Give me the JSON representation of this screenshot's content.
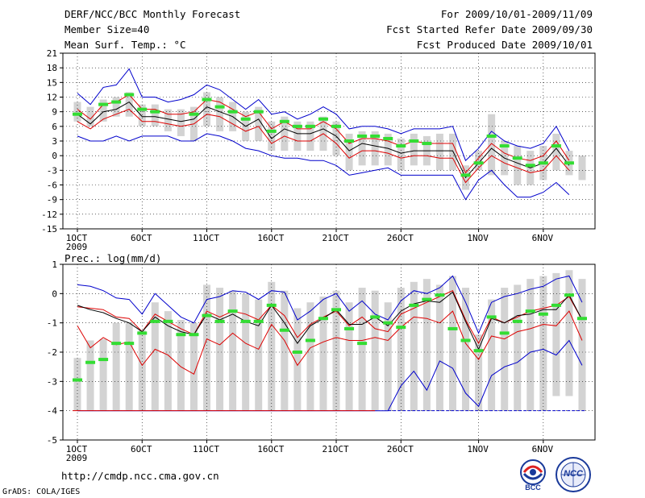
{
  "header": {
    "left": [
      "DERF/NCC/BCC Monthly Forecast",
      "Member Size=40",
      "Mean Surf. Temp.: °C"
    ],
    "right": [
      "For 2009/10/01-2009/11/09",
      "Fcst Started Refer Date 2009/09/30",
      "Fcst Produced Date 2009/10/01"
    ]
  },
  "footer": {
    "url": "http://cmdp.ncc.cma.gov.cn",
    "grads": "GrADS: COLA/IGES"
  },
  "logos": {
    "bcc": "BCC",
    "ncc": "NCC"
  },
  "colors": {
    "ensemble_max": "#0000cc",
    "ensemble_min": "#0000cc",
    "mean": "#000000",
    "spread": "#dd0000",
    "bar": "#d3d3d3",
    "mode": "#33dd33"
  },
  "chart_data": [
    {
      "type": "box-line",
      "title": "Mean Surf. Temp.: °C",
      "ylabel": "°C",
      "ylim": [
        -15,
        21
      ],
      "yticks": [
        -15,
        -12,
        -9,
        -6,
        -3,
        0,
        3,
        6,
        9,
        12,
        15,
        18,
        21
      ],
      "x_tick_labels": [
        {
          "day": 1,
          "label": "1OCT",
          "sub": "2009"
        },
        {
          "day": 6,
          "label": "6OCT"
        },
        {
          "day": 11,
          "label": "11OCT"
        },
        {
          "day": 16,
          "label": "16OCT"
        },
        {
          "day": 21,
          "label": "21OCT"
        },
        {
          "day": 26,
          "label": "26OCT"
        },
        {
          "day": 32,
          "label": "1NOV"
        },
        {
          "day": 37,
          "label": "6NOV"
        }
      ],
      "days": [
        1,
        2,
        3,
        4,
        5,
        6,
        7,
        8,
        9,
        10,
        11,
        12,
        13,
        14,
        15,
        16,
        17,
        18,
        19,
        20,
        21,
        22,
        23,
        24,
        25,
        26,
        27,
        28,
        29,
        30,
        31,
        32,
        33,
        34,
        35,
        36,
        37,
        38,
        39,
        40
      ],
      "series": [
        {
          "name": "max",
          "values": [
            12.8,
            10.5,
            14.0,
            14.5,
            17.8,
            12.0,
            12.0,
            11.0,
            11.5,
            12.5,
            14.5,
            13.5,
            11.5,
            9.5,
            11.5,
            8.5,
            9.0,
            7.5,
            8.5,
            10.0,
            8.5,
            5.5,
            6.0,
            6.0,
            5.5,
            4.5,
            5.5,
            5.5,
            5.5,
            6.0,
            -1.0,
            1.5,
            5.0,
            3.0,
            2.0,
            1.5,
            2.5,
            6.0,
            1.0,
            null
          ]
        },
        {
          "name": "upper",
          "values": [
            9.5,
            7.5,
            10.5,
            11.0,
            12.5,
            9.5,
            9.5,
            8.5,
            8.5,
            9.0,
            11.5,
            11.0,
            9.5,
            8.0,
            9.0,
            5.5,
            7.0,
            5.5,
            5.5,
            7.0,
            5.5,
            2.5,
            3.5,
            3.5,
            3.0,
            2.0,
            3.0,
            2.5,
            2.5,
            2.5,
            -3.5,
            -0.5,
            2.5,
            0.5,
            -0.5,
            -1.0,
            0.0,
            3.0,
            -1.0,
            null
          ]
        },
        {
          "name": "mean",
          "values": [
            8.5,
            6.5,
            9.0,
            9.5,
            11.0,
            8.0,
            8.0,
            7.5,
            7.0,
            7.5,
            10.0,
            9.0,
            8.0,
            6.0,
            7.5,
            3.5,
            5.5,
            4.5,
            4.5,
            5.5,
            4.0,
            1.0,
            2.5,
            2.0,
            1.5,
            0.5,
            1.0,
            1.0,
            1.0,
            1.0,
            -4.5,
            -1.5,
            1.5,
            -0.5,
            -1.5,
            -2.5,
            -1.5,
            1.5,
            -2.0,
            null
          ]
        },
        {
          "name": "lower",
          "values": [
            7.0,
            5.5,
            7.5,
            8.5,
            9.5,
            7.0,
            7.0,
            6.5,
            6.0,
            6.5,
            8.5,
            8.0,
            6.5,
            5.0,
            6.0,
            2.5,
            4.0,
            3.0,
            3.0,
            4.5,
            2.5,
            -0.5,
            1.0,
            1.0,
            0.5,
            -0.5,
            0.0,
            0.0,
            -0.5,
            -0.5,
            -5.5,
            -2.5,
            0.0,
            -1.5,
            -2.5,
            -3.5,
            -3.0,
            0.0,
            -3.0,
            null
          ]
        },
        {
          "name": "min",
          "values": [
            4.0,
            3.0,
            3.0,
            4.0,
            3.0,
            4.0,
            4.0,
            4.0,
            3.0,
            3.0,
            4.5,
            4.0,
            3.0,
            1.5,
            1.0,
            0.0,
            -0.5,
            -0.5,
            -1.0,
            -1.0,
            -2.0,
            -4.0,
            -3.5,
            -3.0,
            -2.5,
            -4.0,
            -4.0,
            -4.0,
            -4.0,
            -4.0,
            -9.0,
            -5.0,
            -3.0,
            -6.0,
            -8.5,
            -8.5,
            -7.5,
            -5.5,
            -8.0,
            null
          ]
        },
        {
          "name": "mode",
          "values": [
            8.5,
            null,
            10.5,
            11.0,
            12.5,
            9.5,
            9.0,
            null,
            null,
            8.5,
            11.5,
            10.0,
            9.0,
            7.5,
            9.0,
            5.0,
            7.0,
            6.0,
            6.0,
            7.5,
            6.0,
            3.0,
            4.0,
            4.0,
            3.5,
            2.0,
            3.0,
            2.5,
            null,
            null,
            -4.0,
            -1.5,
            4.0,
            2.0,
            -0.5,
            -2.0,
            -1.5,
            2.0,
            -1.5,
            null
          ]
        }
      ],
      "box": {
        "top": [
          11,
          10,
          11.5,
          12,
          13,
          10.5,
          10.5,
          9.5,
          9.5,
          10,
          13,
          12,
          11,
          9,
          10,
          7,
          8,
          7,
          7,
          8,
          7,
          4.5,
          5,
          5,
          4.5,
          3.5,
          4.5,
          4,
          4.5,
          4.5,
          -2,
          1,
          8.5,
          3,
          2,
          1,
          2,
          4.5,
          1,
          0
        ],
        "bottom": [
          7,
          6,
          7,
          8,
          8,
          6,
          6,
          5,
          4,
          3,
          6,
          5,
          5,
          3,
          3,
          1,
          1,
          1,
          1,
          1,
          0,
          -3,
          -2,
          -2,
          -2,
          -3,
          -2,
          -2,
          -3,
          -3,
          -7,
          -3,
          -4,
          -4,
          -6,
          -6,
          -5,
          -3,
          -4,
          -5
        ]
      }
    },
    {
      "type": "box-line",
      "title": "Prec.: log(mm/d)",
      "ylabel": "log(mm/d)",
      "ylim": [
        -5,
        1
      ],
      "yticks": [
        -5,
        -4,
        -3,
        -2,
        -1,
        0,
        1
      ],
      "x_tick_labels": [
        {
          "day": 1,
          "label": "1OCT",
          "sub": "2009"
        },
        {
          "day": 6,
          "label": "6OCT"
        },
        {
          "day": 11,
          "label": "11OCT"
        },
        {
          "day": 16,
          "label": "16OCT"
        },
        {
          "day": 21,
          "label": "21OCT"
        },
        {
          "day": 26,
          "label": "26OCT"
        },
        {
          "day": 32,
          "label": "1NOV"
        },
        {
          "day": 37,
          "label": "6NOV"
        }
      ],
      "days": [
        1,
        2,
        3,
        4,
        5,
        6,
        7,
        8,
        9,
        10,
        11,
        12,
        13,
        14,
        15,
        16,
        17,
        18,
        19,
        20,
        21,
        22,
        23,
        24,
        25,
        26,
        27,
        28,
        29,
        30,
        31,
        32,
        33,
        34,
        35,
        36,
        37,
        38,
        39,
        40
      ],
      "series": [
        {
          "name": "max",
          "values": [
            0.3,
            0.25,
            0.1,
            -0.15,
            -0.2,
            -0.7,
            0.0,
            -0.4,
            -0.8,
            -1.0,
            -0.2,
            -0.1,
            0.1,
            0.05,
            -0.2,
            0.1,
            0.05,
            -0.9,
            -0.6,
            -0.2,
            0.0,
            -0.6,
            -0.25,
            -0.7,
            -0.9,
            -0.25,
            0.1,
            0.0,
            0.2,
            0.6,
            -0.3,
            -1.35,
            -0.3,
            -0.1,
            0.0,
            0.15,
            0.25,
            0.5,
            0.6,
            -0.3
          ]
        },
        {
          "name": "upper",
          "values": [
            -0.45,
            -0.5,
            -0.55,
            -0.8,
            -0.85,
            -1.3,
            -0.7,
            -0.95,
            -1.2,
            -1.4,
            -0.6,
            -0.8,
            -0.6,
            -0.7,
            -0.9,
            -0.4,
            -0.75,
            -1.5,
            -1.05,
            -0.8,
            -0.6,
            -1.1,
            -0.8,
            -1.2,
            -1.3,
            -0.7,
            -0.5,
            -0.3,
            -0.1,
            0.1,
            -0.9,
            -1.7,
            -0.8,
            -1.0,
            -0.8,
            -0.6,
            -0.5,
            -0.4,
            -0.1,
            -0.9
          ]
        },
        {
          "name": "mean",
          "values": [
            -0.4,
            -0.55,
            -0.65,
            -0.85,
            -1.0,
            -1.3,
            -0.8,
            -1.1,
            -1.3,
            -1.4,
            -0.7,
            -0.9,
            -0.7,
            -0.95,
            -1.1,
            -0.4,
            -1.0,
            -1.7,
            -1.1,
            -0.85,
            -0.55,
            -1.05,
            -1.05,
            -0.8,
            -1.1,
            -0.6,
            -0.35,
            -0.25,
            -0.3,
            0.05,
            -0.95,
            -1.9,
            -0.85,
            -1.0,
            -0.75,
            -0.7,
            -0.55,
            -0.55,
            -0.05,
            -0.9
          ]
        },
        {
          "name": "lower",
          "values": [
            -1.1,
            -1.85,
            -1.5,
            -1.75,
            -1.65,
            -2.45,
            -1.9,
            -2.1,
            -2.5,
            -2.75,
            -1.55,
            -1.75,
            -1.35,
            -1.7,
            -1.9,
            -1.05,
            -1.6,
            -2.45,
            -1.85,
            -1.65,
            -1.5,
            -1.6,
            -1.6,
            -1.5,
            -1.6,
            -1.15,
            -0.8,
            -0.85,
            -1.0,
            -0.6,
            -1.7,
            -2.25,
            -1.45,
            -1.55,
            -1.3,
            -1.2,
            -1.05,
            -1.1,
            -0.6,
            -1.6
          ]
        },
        {
          "name": "min",
          "values": [
            -4.0,
            -4.0,
            -4.0,
            -4.0,
            -4.0,
            -4.0,
            -4.0,
            -4.0,
            -4.0,
            -4.0,
            -4.0,
            -4.0,
            -4.0,
            -4.0,
            -4.0,
            -4.0,
            -4.0,
            -4.0,
            -4.0,
            -4.0,
            -4.0,
            -4.0,
            -4.0,
            -4.0,
            -4.0,
            -3.15,
            -2.65,
            -3.3,
            -2.3,
            -2.55,
            -3.4,
            -3.85,
            -2.8,
            -2.5,
            -2.35,
            -2.0,
            -1.9,
            -2.1,
            -1.6,
            -2.45
          ]
        },
        {
          "name": "mode",
          "values": [
            -2.95,
            -2.35,
            -2.25,
            -1.7,
            -1.7,
            -1.35,
            -0.95,
            -0.95,
            -1.4,
            -1.4,
            -0.75,
            -0.95,
            -0.6,
            -0.95,
            -0.95,
            -0.4,
            -1.25,
            -2.0,
            -1.6,
            -0.85,
            -0.55,
            -1.2,
            -1.7,
            -0.8,
            -1.0,
            -1.15,
            -0.4,
            -0.2,
            -0.05,
            -1.2,
            -1.6,
            -1.95,
            -0.8,
            -1.35,
            -0.95,
            -0.6,
            -0.7,
            -0.4,
            -0.05,
            -0.85
          ]
        }
      ],
      "box": {
        "top": [
          -2.2,
          -1.6,
          -1.55,
          -1.0,
          -1.0,
          -1.25,
          -0.3,
          -0.6,
          -0.9,
          -1.0,
          0.3,
          0.2,
          0.1,
          0.0,
          -0.2,
          0.4,
          0.1,
          -0.5,
          -0.3,
          -0.1,
          0.1,
          -0.3,
          0.2,
          0.1,
          -0.3,
          0.2,
          0.4,
          0.5,
          0.3,
          0.6,
          0.2,
          -1.4,
          -0.2,
          0.2,
          0.3,
          0.5,
          0.6,
          0.7,
          0.8,
          0.5
        ],
        "bottom": [
          -4.0,
          -4.0,
          -4.0,
          -4.0,
          -4.0,
          -4.0,
          -4.0,
          -4.0,
          -4.0,
          -4.0,
          -4.0,
          -4.0,
          -4.0,
          -4.0,
          -4.0,
          -4.0,
          -4.0,
          -4.0,
          -4.0,
          -4.0,
          -4.0,
          -4.0,
          -4.0,
          -4.0,
          -4.0,
          -4.0,
          -4.0,
          -4.0,
          -4.0,
          -4.0,
          -4.0,
          -4.0,
          -4.0,
          -4.0,
          -4.0,
          -4.0,
          -4.0,
          -3.5,
          -3.5,
          -4.0
        ]
      }
    }
  ]
}
